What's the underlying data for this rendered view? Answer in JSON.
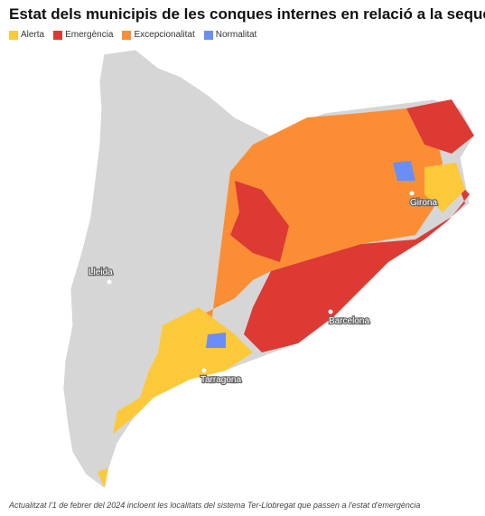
{
  "title": "Estat dels municipis de les conques internes en relació a la sequera",
  "legend": [
    {
      "name": "Alerta",
      "color": "#fcc93a"
    },
    {
      "name": "Emergència",
      "color": "#dc3a33"
    },
    {
      "name": "Excepcionalitat",
      "color": "#fb8e35"
    },
    {
      "name": "Normalitat",
      "color": "#6a8ef5"
    }
  ],
  "cities": [
    "Lleida",
    "Girona",
    "Barcelona",
    "Tarragona"
  ],
  "note": "Actualitzat l'1 de febrer del 2024 incloent les localitats del sistema Ter-Llobregat que passen a l'estat d'emergència"
}
